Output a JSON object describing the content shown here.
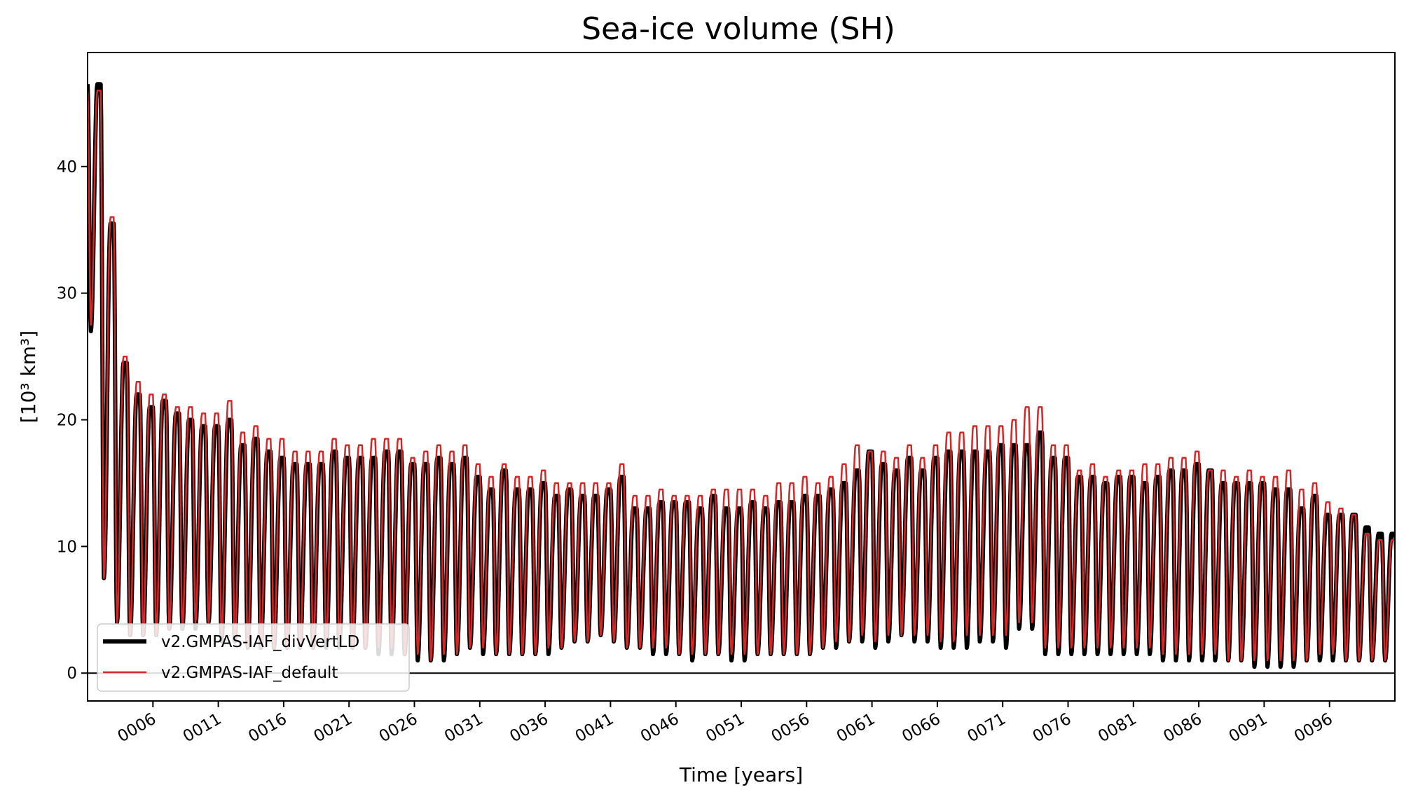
{
  "chart_data": {
    "type": "line",
    "title": "Sea-ice volume (SH)",
    "xlabel": "Time [years]",
    "ylabel": "[10³ km³]",
    "xlim": [
      1,
      101
    ],
    "ylim": [
      -2.2,
      49
    ],
    "xticks": [
      6,
      11,
      16,
      21,
      26,
      31,
      36,
      41,
      46,
      51,
      56,
      61,
      66,
      71,
      76,
      81,
      86,
      91,
      96
    ],
    "xtick_labels": [
      "0006",
      "0011",
      "0016",
      "0021",
      "0026",
      "0031",
      "0036",
      "0041",
      "0046",
      "0051",
      "0056",
      "0061",
      "0066",
      "0071",
      "0076",
      "0081",
      "0086",
      "0091",
      "0096"
    ],
    "yticks": [
      0,
      10,
      20,
      30,
      40
    ],
    "ytick_labels": [
      "0",
      "10",
      "20",
      "30",
      "40"
    ],
    "zero_line": true,
    "legend_position": "lower-left",
    "series": [
      {
        "name": "v2.GMPAS-IAF_divVertLD",
        "color": "#000000",
        "annual_max": [
          46.5,
          35.5,
          24.5,
          22.0,
          21.0,
          21.5,
          20.5,
          20.0,
          19.5,
          19.5,
          20.0,
          18.0,
          18.5,
          17.5,
          17.0,
          16.5,
          16.5,
          16.5,
          17.5,
          17.0,
          17.0,
          17.0,
          17.5,
          17.5,
          16.5,
          16.5,
          17.0,
          16.5,
          17.0,
          15.5,
          14.5,
          16.0,
          14.5,
          14.5,
          15.0,
          14.0,
          14.5,
          14.0,
          14.0,
          14.5,
          15.5,
          13.0,
          13.0,
          13.5,
          13.5,
          13.5,
          13.0,
          14.0,
          13.0,
          13.0,
          13.5,
          13.0,
          13.5,
          13.5,
          14.0,
          14.0,
          14.5,
          15.0,
          16.0,
          17.5,
          16.5,
          16.0,
          17.0,
          16.0,
          17.0,
          17.5,
          17.5,
          17.5,
          17.5,
          18.0,
          18.0,
          18.0,
          19.0,
          17.0,
          17.0,
          15.5,
          15.5,
          15.0,
          15.5,
          15.5,
          15.0,
          15.5,
          16.0,
          16.0,
          16.5,
          16.0,
          15.0,
          15.0,
          15.0,
          15.0,
          14.5,
          14.5,
          13.0,
          14.0,
          12.5,
          12.5,
          12.5,
          11.5,
          11.0,
          11.0,
          11.0
        ],
        "annual_min": [
          27.0,
          7.5,
          4.0,
          3.0,
          3.0,
          3.0,
          3.5,
          3.5,
          3.5,
          4.0,
          2.5,
          2.5,
          2.0,
          2.0,
          2.0,
          2.0,
          2.0,
          2.0,
          2.0,
          2.0,
          2.0,
          2.0,
          1.5,
          1.5,
          1.5,
          1.0,
          1.0,
          1.0,
          1.5,
          2.0,
          1.5,
          1.5,
          1.5,
          1.5,
          1.5,
          1.5,
          2.0,
          2.5,
          2.5,
          3.0,
          2.5,
          2.0,
          2.0,
          1.5,
          1.5,
          1.5,
          1.0,
          1.5,
          1.5,
          1.0,
          1.0,
          1.5,
          1.5,
          1.5,
          1.5,
          1.5,
          2.0,
          2.0,
          2.5,
          2.5,
          2.0,
          2.5,
          3.0,
          2.5,
          2.5,
          2.0,
          2.0,
          2.0,
          2.5,
          2.5,
          2.0,
          3.5,
          3.5,
          1.5,
          1.5,
          1.5,
          1.5,
          1.5,
          1.5,
          1.5,
          1.5,
          1.5,
          1.0,
          1.0,
          1.0,
          1.0,
          1.0,
          1.0,
          1.0,
          0.5,
          0.5,
          0.5,
          0.5,
          1.0,
          1.0,
          1.0,
          1.0,
          1.0,
          1.0,
          1.0,
          7.0
        ]
      },
      {
        "name": "v2.GMPAS-IAF_default",
        "color": "#d62728",
        "annual_max": [
          46.0,
          36.0,
          25.0,
          23.0,
          22.0,
          22.0,
          21.0,
          21.0,
          20.5,
          20.5,
          21.5,
          19.0,
          19.5,
          18.5,
          18.5,
          17.5,
          17.5,
          17.5,
          18.5,
          18.0,
          18.0,
          18.5,
          18.5,
          18.5,
          17.0,
          17.5,
          18.0,
          17.5,
          18.0,
          16.5,
          15.5,
          16.5,
          15.5,
          15.5,
          16.0,
          15.0,
          15.0,
          15.0,
          15.0,
          15.0,
          16.5,
          14.0,
          14.0,
          14.5,
          14.0,
          14.0,
          14.0,
          14.5,
          14.5,
          14.5,
          14.5,
          14.0,
          15.0,
          15.0,
          15.5,
          15.0,
          15.5,
          16.5,
          18.0,
          17.5,
          17.5,
          17.0,
          18.0,
          17.0,
          18.0,
          19.0,
          19.0,
          19.5,
          19.5,
          19.5,
          20.0,
          21.0,
          21.0,
          18.0,
          18.0,
          16.0,
          16.5,
          15.5,
          16.0,
          16.0,
          16.5,
          16.5,
          17.0,
          17.0,
          17.5,
          16.0,
          16.0,
          15.5,
          16.0,
          15.5,
          15.5,
          16.0,
          14.5,
          15.0,
          13.5,
          13.0,
          12.5,
          11.0,
          10.5,
          10.5,
          10.5
        ],
        "annual_min": [
          27.5,
          7.5,
          4.0,
          3.0,
          3.0,
          3.0,
          3.5,
          3.5,
          4.0,
          4.0,
          3.0,
          2.5,
          2.0,
          2.0,
          2.0,
          2.0,
          2.0,
          2.0,
          2.5,
          2.5,
          2.0,
          2.0,
          2.0,
          2.0,
          1.5,
          1.5,
          1.0,
          1.5,
          1.5,
          2.0,
          2.0,
          1.5,
          1.5,
          1.5,
          1.5,
          2.0,
          2.0,
          2.5,
          2.5,
          3.0,
          2.5,
          2.0,
          2.0,
          2.0,
          2.0,
          1.5,
          1.5,
          1.5,
          1.5,
          1.5,
          1.5,
          1.5,
          1.5,
          1.5,
          1.5,
          1.5,
          2.0,
          2.5,
          2.5,
          3.0,
          2.5,
          3.0,
          3.0,
          3.0,
          3.0,
          2.5,
          2.5,
          3.0,
          3.0,
          3.0,
          3.0,
          4.0,
          4.0,
          2.0,
          2.0,
          2.0,
          2.0,
          2.0,
          2.0,
          2.0,
          2.0,
          2.0,
          1.5,
          1.5,
          1.5,
          1.5,
          1.5,
          1.0,
          1.0,
          1.0,
          1.0,
          1.0,
          1.0,
          1.0,
          1.5,
          1.5,
          1.0,
          1.0,
          1.0,
          1.0,
          7.0
        ]
      }
    ]
  }
}
